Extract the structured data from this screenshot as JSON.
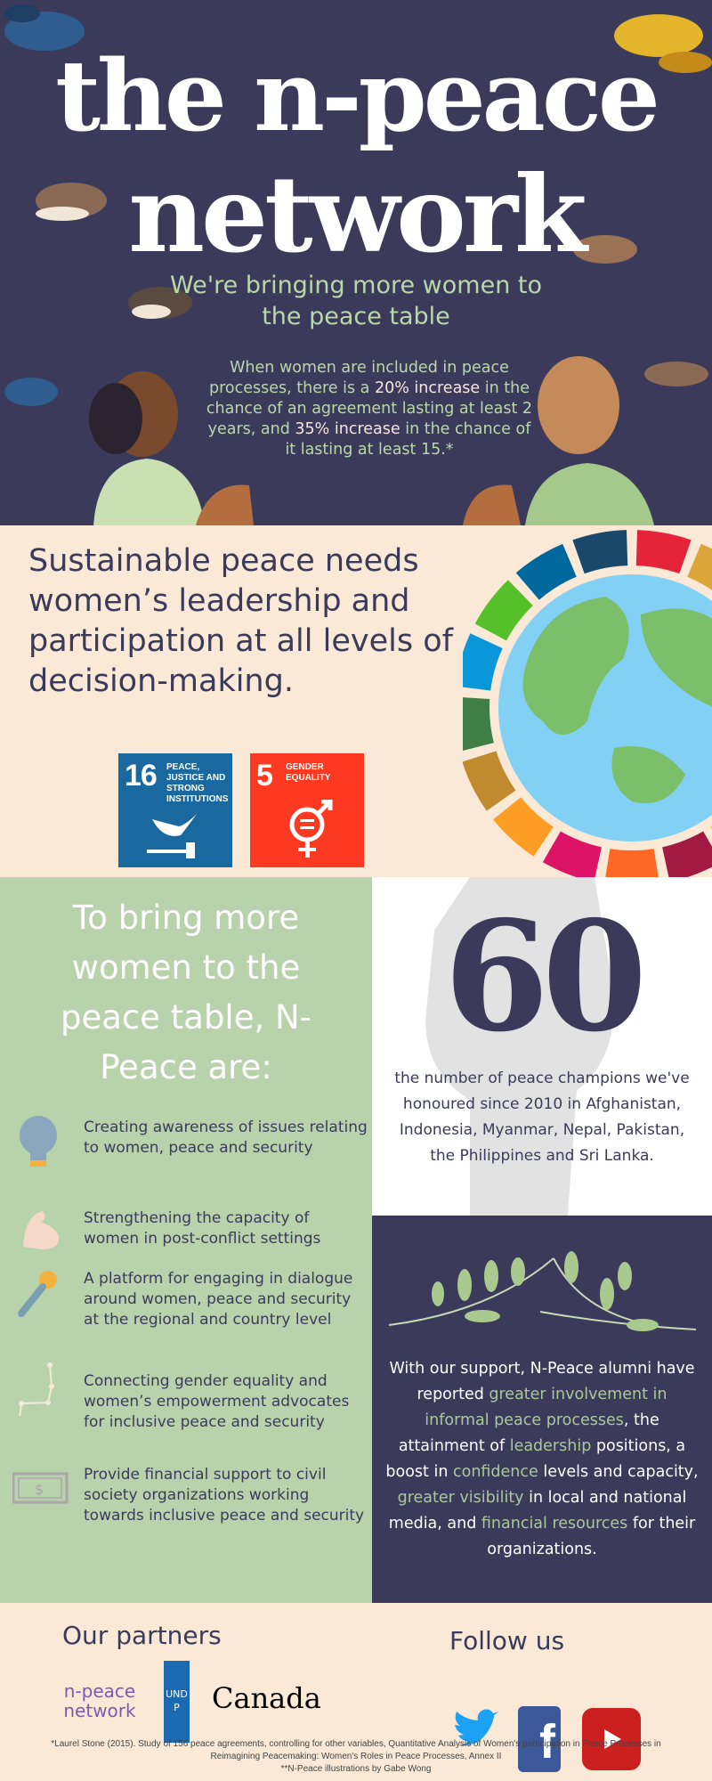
{
  "hero": {
    "title_line1": "the n-peace",
    "title_line2": "network",
    "subtitle": "We're bringing more women to the peace table",
    "stat": {
      "p1": "When women are included in peace processes, there is a ",
      "h1": "20% increase",
      "p2": " in the chance of an agreement lasting at least 2 years, and ",
      "h2": "35% increase",
      "p3": " in the chance of it lasting at least 15.*"
    }
  },
  "sustainable": {
    "text": "Sustainable peace needs women’s leadership and participation at all levels of decision-making.",
    "sdg_tiles": [
      {
        "number": "16",
        "label": "PEACE, JUSTICE AND STRONG INSTITUTIONS",
        "color": "#19689f",
        "icon": "dove-gavel-icon"
      },
      {
        "number": "5",
        "label": "GENDER EQUALITY",
        "color": "#fd3a21",
        "icon": "gender-equality-icon"
      }
    ]
  },
  "actions": {
    "heading": "To bring more women to the peace table, N-Peace are:",
    "items": [
      {
        "icon": "lightbulb-icon",
        "text": "Creating awareness of issues relating to women, peace and security"
      },
      {
        "icon": "flexed-arm-icon",
        "text": "Strengthening the capacity of women in post-conflict settings"
      },
      {
        "icon": "microphone-icon",
        "text": "A platform for engaging in dialogue around women, peace and security at the regional and country level"
      },
      {
        "icon": "constellation-icon",
        "text": "Connecting gender equality and women’s empowerment advocates for inclusive peace and security"
      },
      {
        "icon": "banknote-icon",
        "text": "Provide financial support to civil society organizations working towards inclusive peace and security"
      }
    ]
  },
  "champions": {
    "number": "60",
    "text": "the number of peace champions we've honoured since 2010 in Afghanistan, Indonesia, Myanmar, Nepal, Pakistan, the Philippines and Sri Lanka."
  },
  "alumni": {
    "parts": [
      "With our support, N-Peace alumni have reported ",
      "greater involvement in informal peace processes",
      ", the attainment of ",
      "leadership",
      " positions, a boost in ",
      "confidence",
      " levels and capacity, ",
      "greater visibility",
      " in local and national media, and ",
      "financial resources",
      " for their organizations."
    ]
  },
  "footer": {
    "partners_heading": "Our partners",
    "partners": [
      "n-peace network",
      "UNDP",
      "Canada"
    ],
    "follow_heading": "Follow us",
    "social": [
      "twitter",
      "facebook",
      "youtube"
    ],
    "notes": [
      "*Laurel Stone (2015). Study of 156 peace agreements, controlling for other variables, Quantitative Analysis of Women's participation in Peace Processes in Reimagining Peacemaking: Women's Roles in Peace Processes, Annex II",
      "**N-Peace illustrations by Gabe Wong"
    ]
  },
  "colors": {
    "navy": "#3b3a5a",
    "green": "#b8d3ac",
    "cream": "#f9e9d6",
    "accent_green": "#b9d8aa"
  }
}
